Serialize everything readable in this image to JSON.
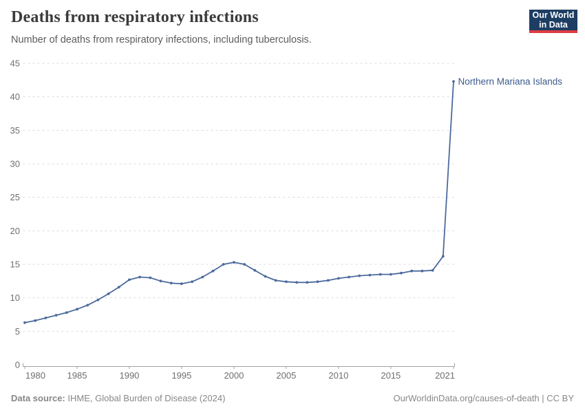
{
  "header": {
    "title": "Deaths from respiratory infections",
    "subtitle": "Number of deaths from respiratory infections, including tuberculosis.",
    "logo": {
      "line1": "Our World",
      "line2": "in Data"
    }
  },
  "chart_data": {
    "type": "line",
    "title": "Deaths from respiratory infections",
    "xlabel": "",
    "ylabel": "",
    "xlim": [
      1980,
      2021
    ],
    "ylim": [
      0,
      45
    ],
    "x_ticks": [
      1980,
      1985,
      1990,
      1995,
      2000,
      2005,
      2010,
      2015,
      2021
    ],
    "y_ticks": [
      0,
      5,
      10,
      15,
      20,
      25,
      30,
      35,
      40,
      45
    ],
    "grid": "horizontal-dashed",
    "legend_position": "end-of-line-label",
    "series": [
      {
        "name": "Northern Mariana Islands",
        "color": "#4C6A9C",
        "x": [
          1980,
          1981,
          1982,
          1983,
          1984,
          1985,
          1986,
          1987,
          1988,
          1989,
          1990,
          1991,
          1992,
          1993,
          1994,
          1995,
          1996,
          1997,
          1998,
          1999,
          2000,
          2001,
          2002,
          2003,
          2004,
          2005,
          2006,
          2007,
          2008,
          2009,
          2010,
          2011,
          2012,
          2013,
          2014,
          2015,
          2016,
          2017,
          2018,
          2019,
          2020,
          2021
        ],
        "values": [
          6.3,
          6.6,
          7.0,
          7.4,
          7.8,
          8.3,
          8.9,
          9.7,
          10.6,
          11.6,
          12.7,
          13.1,
          13.0,
          12.5,
          12.2,
          12.1,
          12.4,
          13.1,
          14.0,
          15.0,
          15.3,
          15.0,
          14.1,
          13.2,
          12.6,
          12.4,
          12.3,
          12.3,
          12.4,
          12.6,
          12.9,
          13.1,
          13.3,
          13.4,
          13.5,
          13.5,
          13.7,
          14.0,
          14.0,
          14.1,
          16.2,
          42.3
        ]
      }
    ]
  },
  "footer": {
    "source_label": "Data source:",
    "source_value": "IHME, Global Burden of Disease (2024)",
    "credit": "OurWorldinData.org/causes-of-death | CC BY"
  },
  "colors": {
    "line": "#4C6A9C",
    "entity_label": "#3d5a8c",
    "brand_navy": "#1d3d63",
    "brand_red": "#dc3d43",
    "grid": "#dadada",
    "axis": "#a1a1a1",
    "tick_text": "#6e6e6e"
  }
}
